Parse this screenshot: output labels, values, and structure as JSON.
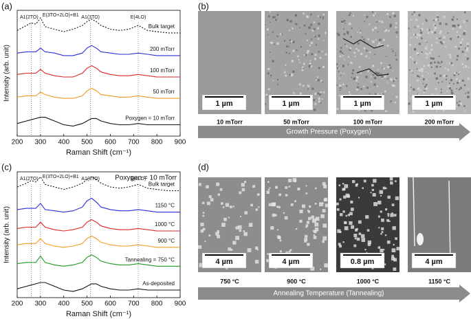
{
  "panel_labels": [
    "(a)",
    "(b)",
    "(c)",
    "(d)"
  ],
  "chart_data": [
    {
      "type": "line",
      "x_label": "Raman Shift (cm⁻¹)",
      "y_label": "Intensity (arb. unit)",
      "x": [
        200,
        240,
        260,
        280,
        300,
        320,
        360,
        400,
        440,
        480,
        500,
        520,
        540,
        560,
        600,
        640,
        680,
        720,
        760,
        800,
        850,
        900
      ],
      "xlim": [
        200,
        900
      ],
      "xticks": [
        200,
        300,
        400,
        500,
        600,
        700,
        800,
        900
      ],
      "ylim": [
        0,
        100
      ],
      "peak_lines": [
        260,
        300,
        515,
        720
      ],
      "peak_labels": [
        "A1(2TO)",
        "E(3TO+2LO)+B1",
        "A1(3TO)",
        "E(4LO)"
      ],
      "series": [
        {
          "name": "Bulk target",
          "color": "#111111",
          "style": "dashed",
          "values": [
            84,
            88,
            90,
            89,
            94,
            87,
            85,
            83,
            85,
            88,
            91,
            93,
            91,
            88,
            85,
            84,
            85,
            88,
            84,
            83,
            82,
            82
          ]
        },
        {
          "name": "200 mTorr",
          "color": "#2b2bd9",
          "values": [
            66,
            67,
            67,
            67,
            70,
            67,
            66,
            64,
            64,
            66,
            70,
            72,
            70,
            67,
            66,
            65,
            65,
            66,
            65,
            64,
            64,
            64
          ]
        },
        {
          "name": "100 mTorr",
          "color": "#e02424",
          "values": [
            49,
            50,
            50,
            50,
            53,
            50,
            48,
            47,
            47,
            50,
            54,
            56,
            54,
            51,
            49,
            48,
            48,
            49,
            48,
            47,
            47,
            47
          ]
        },
        {
          "name": "50 mTorr",
          "color": "#f39a1e",
          "values": [
            31,
            32,
            32,
            32,
            35,
            33,
            31,
            30,
            30,
            32,
            36,
            38,
            36,
            33,
            32,
            31,
            31,
            32,
            31,
            30,
            30,
            30
          ]
        },
        {
          "name": "Poxygen = 10 mTorr",
          "color": "#111111",
          "values": [
            10,
            12,
            13,
            14,
            15,
            15,
            12,
            9,
            8,
            10,
            12,
            14,
            14,
            12,
            10,
            9,
            9,
            10,
            9,
            9,
            9,
            9
          ]
        }
      ]
    },
    {
      "type": "line",
      "x_label": "Raman Shift (cm⁻¹)",
      "y_label": "Intensity (arb. unit)",
      "note": "Poxygen = 10 mTorr",
      "x": [
        200,
        240,
        260,
        280,
        300,
        320,
        360,
        400,
        440,
        480,
        500,
        520,
        540,
        560,
        600,
        640,
        680,
        720,
        760,
        800,
        850,
        900
      ],
      "xlim": [
        200,
        900
      ],
      "xticks": [
        200,
        300,
        400,
        500,
        600,
        700,
        800,
        900
      ],
      "ylim": [
        0,
        100
      ],
      "peak_lines": [
        260,
        300,
        515,
        720
      ],
      "peak_labels": [
        "A1(2TO)",
        "E(3TO+2LO)+B1",
        "A1(3TO)",
        "E(4LO)"
      ],
      "series": [
        {
          "name": "Bulk target",
          "color": "#111111",
          "style": "dashed",
          "values": [
            88,
            91,
            93,
            92,
            96,
            90,
            88,
            86,
            88,
            91,
            94,
            96,
            94,
            91,
            88,
            87,
            88,
            90,
            87,
            86,
            85,
            85
          ]
        },
        {
          "name": "1150 °C",
          "color": "#2b2bd9",
          "values": [
            70,
            71,
            71,
            71,
            75,
            70,
            69,
            68,
            69,
            72,
            77,
            79,
            76,
            72,
            70,
            69,
            69,
            70,
            69,
            68,
            68,
            68
          ]
        },
        {
          "name": "1000 °C",
          "color": "#e02424",
          "values": [
            55,
            56,
            56,
            56,
            60,
            56,
            54,
            53,
            54,
            56,
            60,
            62,
            60,
            57,
            55,
            54,
            54,
            55,
            54,
            53,
            53,
            53
          ]
        },
        {
          "name": "900 °C",
          "color": "#f39a1e",
          "values": [
            42,
            43,
            43,
            43,
            47,
            43,
            41,
            40,
            41,
            43,
            47,
            49,
            47,
            44,
            42,
            41,
            41,
            42,
            41,
            40,
            40,
            40
          ]
        },
        {
          "name": "Tannealing = 750 °C",
          "color": "#1f9a1f",
          "values": [
            27,
            28,
            28,
            28,
            33,
            28,
            26,
            25,
            26,
            28,
            32,
            34,
            32,
            29,
            27,
            26,
            26,
            27,
            26,
            25,
            25,
            25
          ]
        },
        {
          "name": "As-deposited",
          "color": "#111111",
          "values": [
            7,
            9,
            10,
            11,
            12,
            12,
            9,
            6,
            5,
            7,
            9,
            11,
            11,
            9,
            7,
            6,
            6,
            7,
            6,
            6,
            6,
            6
          ]
        }
      ]
    }
  ],
  "sem_panels": [
    {
      "axis_label": "Growth Pressure (Poxygen)",
      "images": [
        {
          "caption": "10 mTorr",
          "scale": "1 µm"
        },
        {
          "caption": "50 mTorr",
          "scale": "1 µm"
        },
        {
          "caption": "100 mTorr",
          "scale": "1 µm"
        },
        {
          "caption": "200 mTorr",
          "scale": "1 µm"
        }
      ]
    },
    {
      "axis_label": "Annealing Temperature (Tannealing)",
      "images": [
        {
          "caption": "750 °C",
          "scale": "4 µm"
        },
        {
          "caption": "900 °C",
          "scale": "4 µm"
        },
        {
          "caption": "1000 °C",
          "scale": "0.8 µm"
        },
        {
          "caption": "1150 °C",
          "scale": "4 µm"
        }
      ]
    }
  ]
}
